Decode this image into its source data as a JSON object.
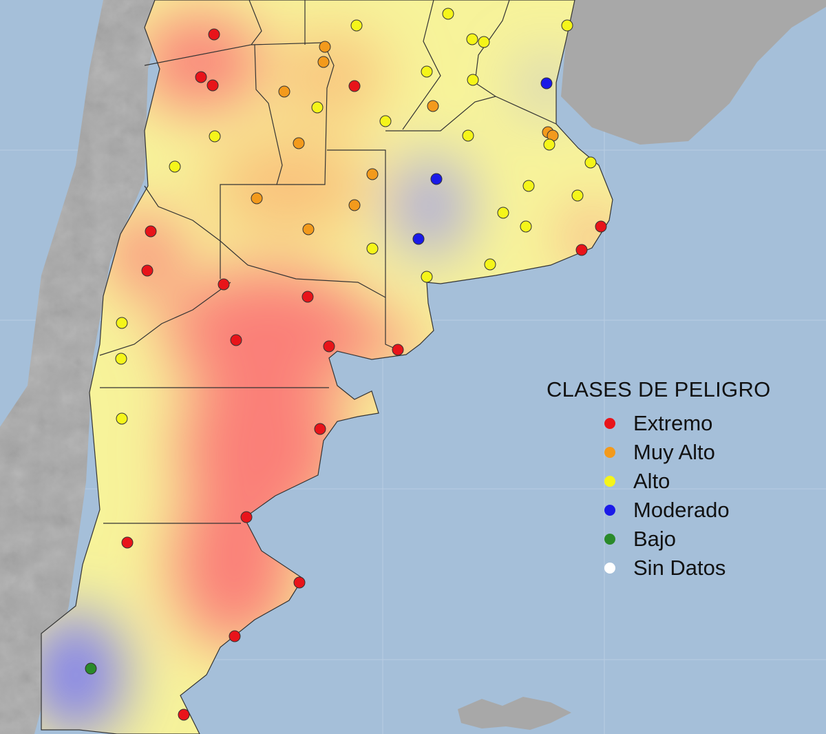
{
  "legend": {
    "title": "CLASES DE PELIGRO",
    "items": [
      {
        "label": "Extremo",
        "color": "#e8141a"
      },
      {
        "label": "Muy Alto",
        "color": "#f39a1c"
      },
      {
        "label": "Alto",
        "color": "#f5f51a"
      },
      {
        "label": "Moderado",
        "color": "#1a1ae8"
      },
      {
        "label": "Bajo",
        "color": "#2a8a2a"
      },
      {
        "label": "Sin Datos",
        "color": "#ffffff"
      }
    ]
  },
  "colors": {
    "sea": "#a5bfd9",
    "neighbor_land": "#a8a8a8",
    "surface_high": "#f7f39a",
    "surface_extreme": "#fa7f78",
    "surface_moderate": "#8c8cf0"
  },
  "stations": {
    "extremo": 19,
    "muy_alto": 11,
    "alto": 24,
    "moderado": 3,
    "bajo": 1
  }
}
